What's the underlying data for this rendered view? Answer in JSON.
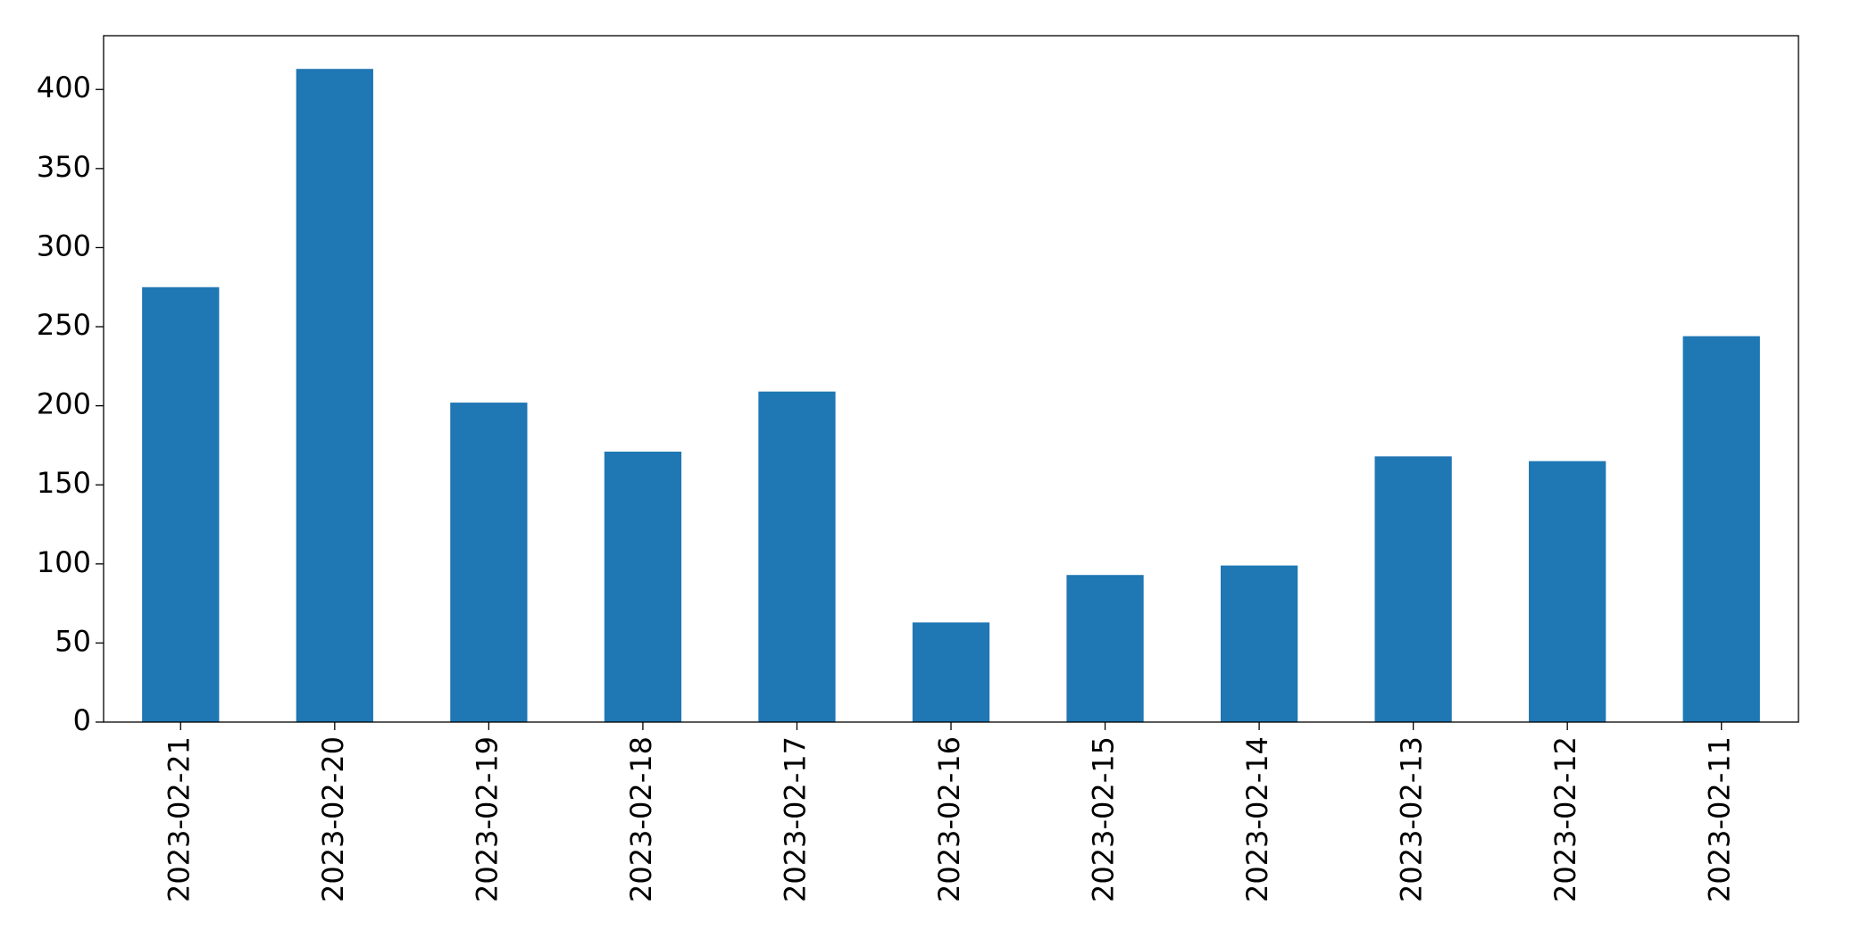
{
  "chart_data": {
    "type": "bar",
    "categories": [
      "2023-02-21",
      "2023-02-20",
      "2023-02-19",
      "2023-02-18",
      "2023-02-17",
      "2023-02-16",
      "2023-02-15",
      "2023-02-14",
      "2023-02-13",
      "2023-02-12",
      "2023-02-11"
    ],
    "values": [
      275,
      413,
      202,
      171,
      209,
      63,
      93,
      99,
      168,
      165,
      244
    ],
    "color": "#1f77b4",
    "ylim": [
      0,
      434
    ],
    "yticks": [
      0,
      50,
      100,
      150,
      200,
      250,
      300,
      350,
      400
    ],
    "grid": false
  }
}
